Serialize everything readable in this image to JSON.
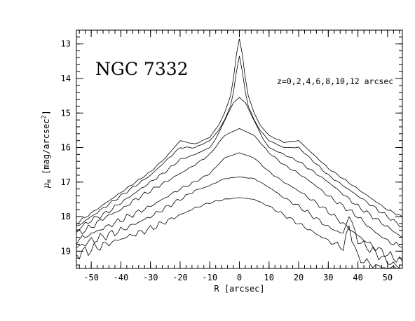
{
  "chart_data": {
    "type": "line",
    "title": "NGC 7332",
    "annotation": "z=0,2,4,6,8,10,12 arcsec",
    "xlabel": "R [arcsec]",
    "ylabel_main": "μ",
    "ylabel_sub": "H",
    "ylabel_unit_open": " [mag/arcsec",
    "ylabel_unit_sup": "2",
    "ylabel_unit_close": "]",
    "xlim": [
      -55,
      55
    ],
    "ylim": [
      19.5,
      12.6
    ],
    "y_inverted": true,
    "xticks": [
      -50,
      -40,
      -30,
      -20,
      -10,
      0,
      10,
      20,
      30,
      40,
      50
    ],
    "yticks": [
      13,
      14,
      15,
      16,
      17,
      18,
      19
    ],
    "x_minor_step": 2,
    "y_minor_step": 0.2,
    "grid": false,
    "series": [
      {
        "x": [
          -55,
          -50,
          -45,
          -40,
          -35,
          -30,
          -25,
          -20,
          -15,
          -10,
          -7,
          -5,
          -3,
          -2,
          -1,
          0,
          1,
          2,
          3,
          5,
          7,
          10,
          15,
          20,
          25,
          30,
          35,
          40,
          45,
          50,
          55
        ],
        "y": [
          18.2,
          17.9,
          17.6,
          17.3,
          17.0,
          16.7,
          16.3,
          15.8,
          15.9,
          15.7,
          15.35,
          15.0,
          14.5,
          14.0,
          13.3,
          12.85,
          13.3,
          14.0,
          14.5,
          15.0,
          15.35,
          15.65,
          15.85,
          15.8,
          16.2,
          16.6,
          16.9,
          17.2,
          17.5,
          17.8,
          18.0
        ]
      },
      {
        "x": [
          -55,
          -50,
          -45,
          -40,
          -35,
          -30,
          -25,
          -20,
          -15,
          -10,
          -7,
          -5,
          -3,
          -2,
          -1,
          0,
          1,
          2,
          3,
          5,
          7,
          10,
          15,
          20,
          25,
          30,
          35,
          40,
          45,
          50,
          55
        ],
        "y": [
          18.3,
          18.0,
          17.7,
          17.4,
          17.1,
          16.8,
          16.4,
          16.0,
          16.0,
          15.8,
          15.5,
          15.2,
          14.8,
          14.4,
          13.8,
          13.35,
          13.8,
          14.4,
          14.8,
          15.2,
          15.5,
          15.8,
          16.0,
          16.0,
          16.4,
          16.8,
          17.1,
          17.4,
          17.7,
          18.0,
          18.3
        ]
      },
      {
        "x": [
          -55,
          -50,
          -45,
          -40,
          -35,
          -30,
          -25,
          -20,
          -15,
          -10,
          -8,
          -6,
          -4,
          -2,
          0,
          2,
          4,
          6,
          8,
          10,
          15,
          20,
          25,
          30,
          35,
          40,
          45,
          50,
          55
        ],
        "y": [
          18.4,
          18.1,
          17.9,
          17.6,
          17.3,
          17.0,
          16.7,
          16.35,
          16.2,
          16.0,
          15.75,
          15.4,
          15.05,
          14.7,
          14.55,
          14.7,
          15.05,
          15.4,
          15.75,
          16.0,
          16.2,
          16.4,
          16.7,
          17.0,
          17.35,
          17.7,
          18.0,
          18.3,
          18.6
        ]
      },
      {
        "x": [
          -55,
          -50,
          -45,
          -40,
          -35,
          -30,
          -25,
          -20,
          -15,
          -10,
          -5,
          0,
          5,
          10,
          15,
          20,
          25,
          30,
          35,
          40,
          45,
          50,
          55
        ],
        "y": [
          18.5,
          18.3,
          18.0,
          17.8,
          17.5,
          17.25,
          17.0,
          16.75,
          16.5,
          16.2,
          15.65,
          15.45,
          15.65,
          16.15,
          16.5,
          16.75,
          17.05,
          17.4,
          17.7,
          18.0,
          18.4,
          18.7,
          18.9
        ]
      },
      {
        "x": [
          -55,
          -50,
          -45,
          -40,
          -35,
          -30,
          -25,
          -20,
          -15,
          -10,
          -5,
          0,
          5,
          10,
          15,
          20,
          25,
          30,
          35,
          40,
          45,
          50,
          55
        ],
        "y": [
          18.7,
          18.5,
          18.3,
          18.1,
          17.9,
          17.7,
          17.45,
          17.2,
          17.0,
          16.75,
          16.3,
          16.15,
          16.3,
          16.7,
          17.0,
          17.25,
          17.55,
          17.85,
          18.2,
          18.55,
          18.85,
          19.1,
          19.3
        ]
      },
      {
        "x": [
          -55,
          -50,
          -45,
          -40,
          -35,
          -30,
          -25,
          -20,
          -15,
          -10,
          -5,
          0,
          5,
          10,
          15,
          20,
          25,
          30,
          35,
          37,
          40,
          45,
          50,
          55
        ],
        "y": [
          18.9,
          18.7,
          18.55,
          18.4,
          18.2,
          18.0,
          17.75,
          17.5,
          17.25,
          17.1,
          16.9,
          16.85,
          16.9,
          17.15,
          17.45,
          17.7,
          18.0,
          18.3,
          18.5,
          17.95,
          18.7,
          19.0,
          19.3,
          19.5
        ]
      },
      {
        "x": [
          -55,
          -50,
          -45,
          -40,
          -35,
          -30,
          -25,
          -20,
          -15,
          -10,
          -5,
          0,
          5,
          10,
          15,
          20,
          25,
          30,
          35,
          37,
          40,
          45,
          50,
          55
        ],
        "y": [
          19.1,
          18.95,
          18.8,
          18.65,
          18.5,
          18.35,
          18.15,
          17.95,
          17.75,
          17.6,
          17.5,
          17.45,
          17.5,
          17.7,
          17.95,
          18.2,
          18.45,
          18.7,
          18.9,
          18.3,
          19.2,
          19.4,
          19.5,
          19.5
        ]
      }
    ]
  }
}
